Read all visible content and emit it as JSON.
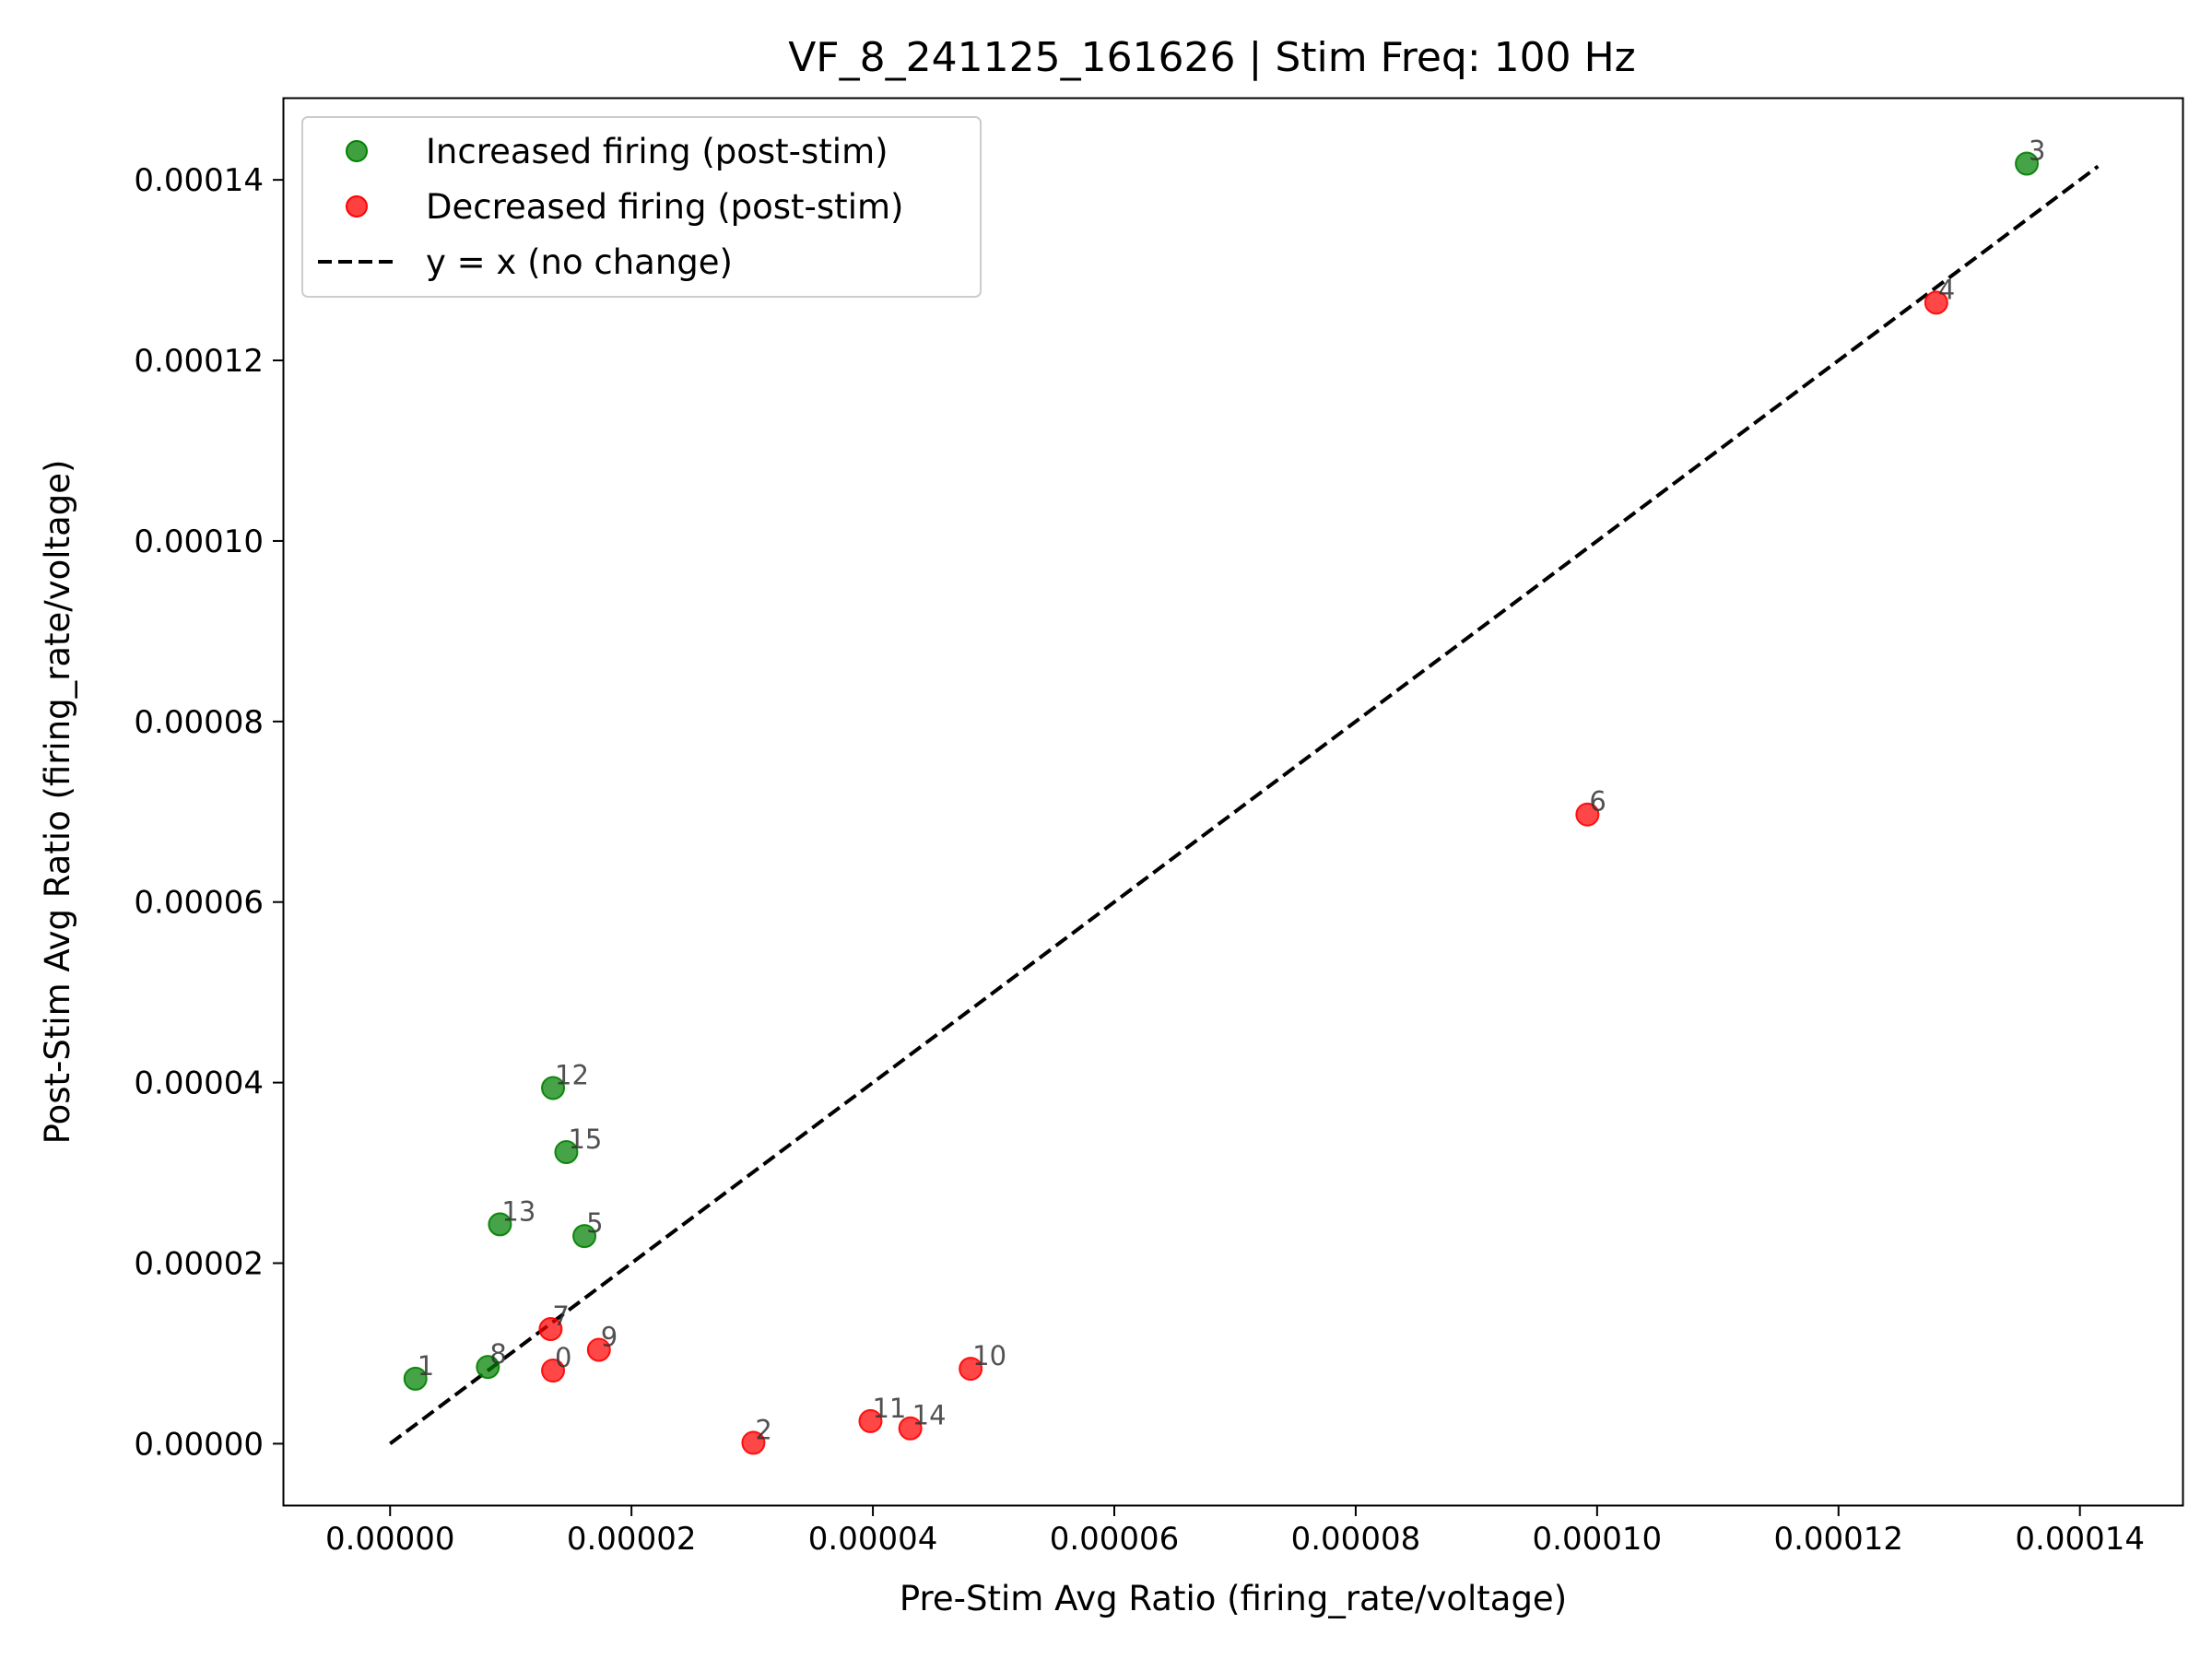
{
  "chart_data": {
    "type": "scatter",
    "title": "VF_8_241125_161626 | Stim Freq: 100 Hz",
    "xlabel": "Pre-Stim Avg Ratio (firing_rate/voltage)",
    "ylabel": "Post-Stim Avg Ratio (firing_rate/voltage)",
    "xlim": [
      -8.8e-06,
      0.0001485
    ],
    "ylim": [
      -6.8e-06,
      0.000149
    ],
    "x_ticks": [
      "0.00000",
      "0.00002",
      "0.00004",
      "0.00006",
      "0.00008",
      "0.00010",
      "0.00012",
      "0.00014"
    ],
    "x_tick_values": [
      0,
      2e-05,
      4e-05,
      6e-05,
      8e-05,
      0.0001,
      0.00012,
      0.00014
    ],
    "y_ticks": [
      "0.00000",
      "0.00002",
      "0.00004",
      "0.00006",
      "0.00008",
      "0.00010",
      "0.00012",
      "0.00014"
    ],
    "y_tick_values": [
      0,
      2e-05,
      4e-05,
      6e-05,
      8e-05,
      0.0001,
      0.00012,
      0.00014
    ],
    "grid": false,
    "legend_position": "top-left",
    "series": [
      {
        "name": "Increased firing (post-stim)",
        "color": "#008000",
        "points": [
          {
            "label": "3",
            "x": 0.0001356,
            "y": 0.0001418
          },
          {
            "label": "12",
            "x": 1.35e-05,
            "y": 3.94e-05
          },
          {
            "label": "15",
            "x": 1.46e-05,
            "y": 3.23e-05
          },
          {
            "label": "13",
            "x": 9.1e-06,
            "y": 2.43e-05
          },
          {
            "label": "5",
            "x": 1.61e-05,
            "y": 2.3e-05
          },
          {
            "label": "8",
            "x": 8.1e-06,
            "y": 8.5e-06
          },
          {
            "label": "1",
            "x": 2.1e-06,
            "y": 7.2e-06
          }
        ]
      },
      {
        "name": "Decreased firing (post-stim)",
        "color": "#ff0000",
        "points": [
          {
            "label": "4",
            "x": 0.0001281,
            "y": 0.0001264
          },
          {
            "label": "6",
            "x": 9.92e-05,
            "y": 6.97e-05
          },
          {
            "label": "7",
            "x": 1.33e-05,
            "y": 1.27e-05
          },
          {
            "label": "9",
            "x": 1.73e-05,
            "y": 1.04e-05
          },
          {
            "label": "0",
            "x": 1.35e-05,
            "y": 8.1e-06
          },
          {
            "label": "10",
            "x": 4.81e-05,
            "y": 8.3e-06
          },
          {
            "label": "11",
            "x": 3.98e-05,
            "y": 2.5e-06
          },
          {
            "label": "14",
            "x": 4.31e-05,
            "y": 1.7e-06
          },
          {
            "label": "2",
            "x": 3.01e-05,
            "y": 1e-07
          }
        ]
      }
    ],
    "reference_line": {
      "name": "y = x (no change)",
      "style": "dashed",
      "color": "#000000",
      "x": [
        0,
        0.0001415
      ],
      "y": [
        0,
        0.0001415
      ]
    }
  }
}
